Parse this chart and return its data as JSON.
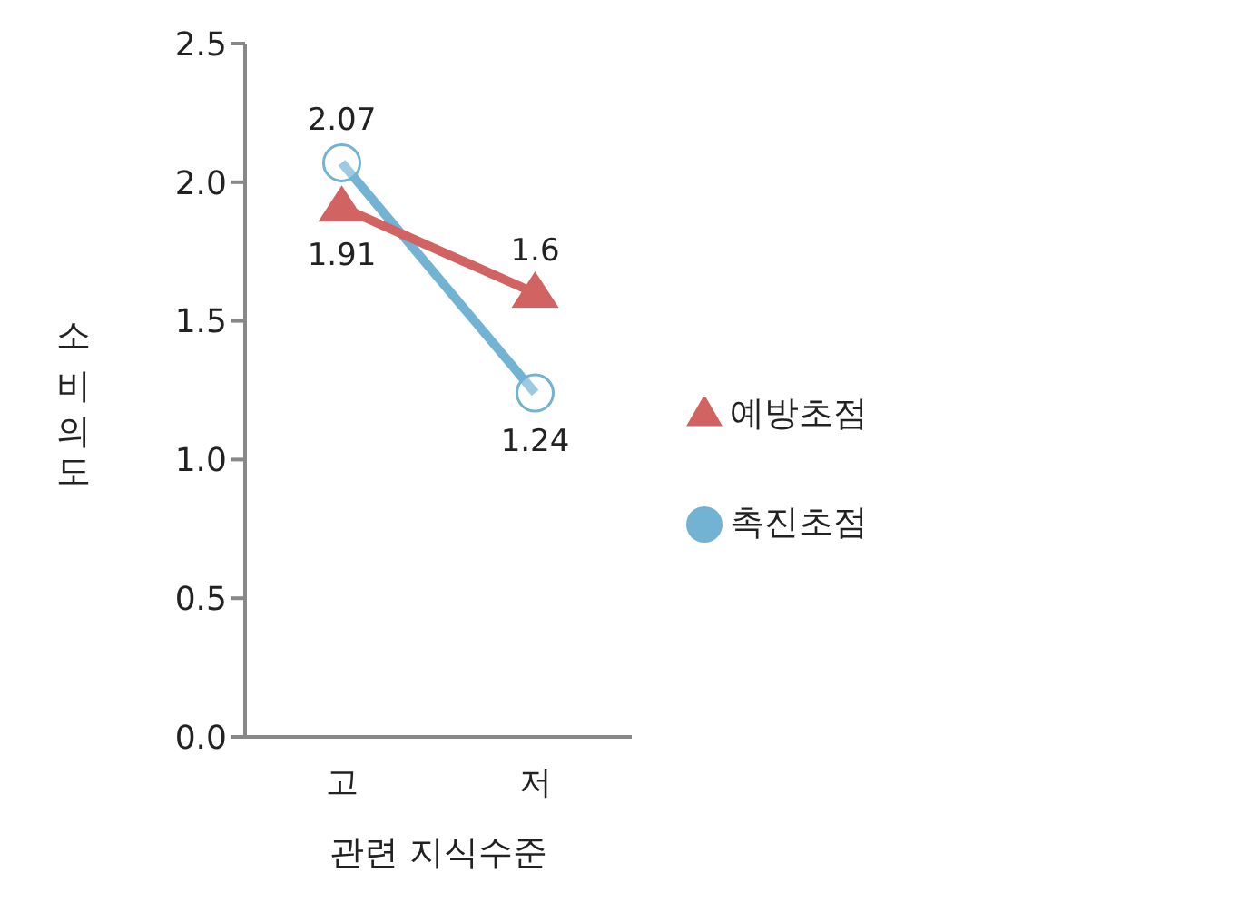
{
  "chart_data": {
    "type": "line",
    "xlabel": "관련 지식수준",
    "ylabel": "소비의도",
    "categories": [
      "고",
      "저"
    ],
    "series": [
      {
        "name": "촉진초점",
        "color": "#72b3d3",
        "values": [
          2.07,
          1.24
        ],
        "marker": "circle"
      },
      {
        "name": "예방초점",
        "color": "#d26363",
        "values": [
          1.91,
          1.6
        ],
        "marker": "triangle"
      }
    ],
    "ylim": [
      0,
      2.5
    ],
    "yticks": [
      {
        "value": 0,
        "label": "0.0"
      },
      {
        "value": 0.5,
        "label": "0.5"
      },
      {
        "value": 1,
        "label": "1.0"
      },
      {
        "value": 1.5,
        "label": "1.5"
      },
      {
        "value": 2,
        "label": "2.0"
      },
      {
        "value": 2.5,
        "label": "2.5"
      }
    ],
    "grid": false,
    "legend": "right",
    "data_labels": true
  }
}
